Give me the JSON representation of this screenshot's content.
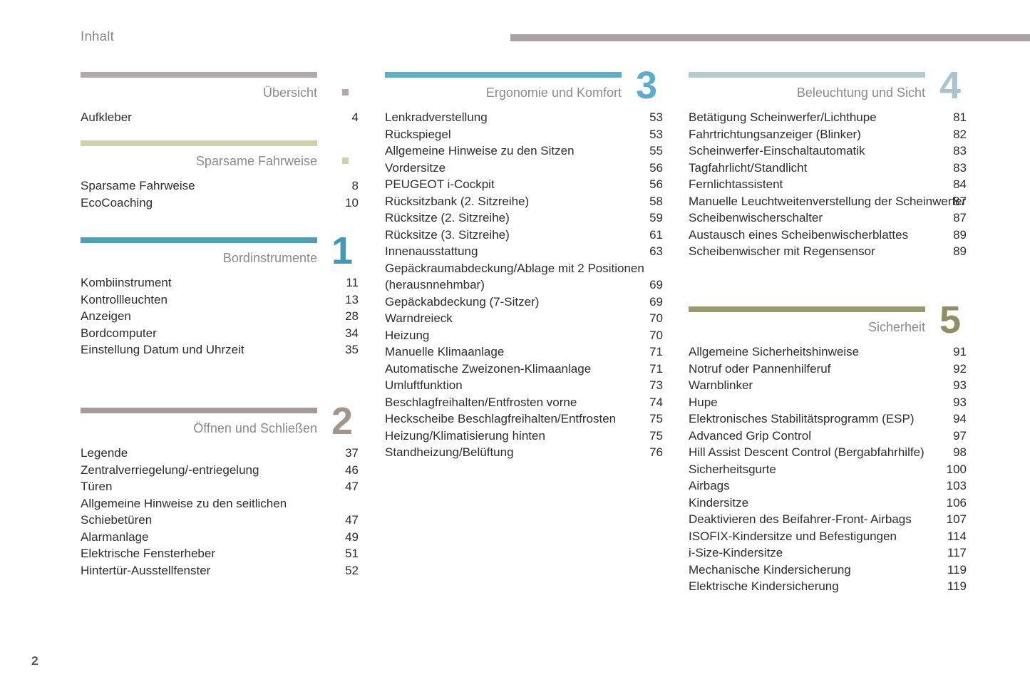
{
  "header": {
    "title": "Inhalt"
  },
  "footer": {
    "page_number": "2"
  },
  "colors": {
    "top_rule": "#aaa1a5",
    "section_title_text": "#8a8a8a",
    "item_text": "#2d2d2d"
  },
  "sections": [
    {
      "id": "uebersicht",
      "column": 1,
      "title": "Übersicht",
      "marker": "square",
      "bar_color": "#b3a9ad",
      "accent_color": "#b3a9ad",
      "items": [
        {
          "label": "Aufkleber",
          "page": "4"
        }
      ]
    },
    {
      "id": "sparsame-fahrweise",
      "column": 1,
      "title": "Sparsame Fahrweise",
      "marker": "square",
      "bar_color": "#cfd1ac",
      "accent_color": "#cfd1ac",
      "items": [
        {
          "label": "Sparsame Fahrweise",
          "page": "8"
        },
        {
          "label": "EcoCoaching",
          "page": "10"
        }
      ]
    },
    {
      "id": "bordinstrumente",
      "column": 1,
      "title": "Bordinstrumente",
      "marker": "number",
      "number": "1",
      "bar_color": "#4ba1bc",
      "accent_color": "#4398b3",
      "items": [
        {
          "label": "Kombiinstrument",
          "page": "11"
        },
        {
          "label": "Kontrollleuchten",
          "page": "13"
        },
        {
          "label": "Anzeigen",
          "page": "28"
        },
        {
          "label": "Bordcomputer",
          "page": "34"
        },
        {
          "label": "Einstellung Datum und Uhrzeit",
          "page": "35"
        }
      ]
    },
    {
      "id": "oeffnen-und-schliessen",
      "column": 1,
      "title": "Öffnen und Schließen",
      "marker": "number",
      "number": "2",
      "bar_color": "#a89d95",
      "accent_color": "#a1968e",
      "items": [
        {
          "label": "Legende",
          "page": "37"
        },
        {
          "label": "Zentralverriegelung/-entriegelung",
          "page": "46"
        },
        {
          "label": "Türen",
          "page": "47"
        },
        {
          "label": "Allgemeine Hinweise zu den seitlichen Schiebetüren",
          "page": "47"
        },
        {
          "label": "Alarmanlage",
          "page": "49"
        },
        {
          "label": "Elektrische Fensterheber",
          "page": "51"
        },
        {
          "label": "Hintertür-Ausstellfenster",
          "page": "52"
        }
      ]
    },
    {
      "id": "ergonomie-und-komfort",
      "column": 2,
      "title": "Ergonomie und Komfort",
      "marker": "number",
      "number": "3",
      "bar_color": "#5fb0c9",
      "accent_color": "#5cadcd",
      "items": [
        {
          "label": "Lenkradverstellung",
          "page": "53"
        },
        {
          "label": "Rückspiegel",
          "page": "53"
        },
        {
          "label": "Allgemeine Hinweise zu den Sitzen",
          "page": "55"
        },
        {
          "label": "Vordersitze",
          "page": "56"
        },
        {
          "label": "PEUGEOT i-Cockpit",
          "page": "56"
        },
        {
          "label": "Rücksitzbank (2. Sitzreihe)",
          "page": "58"
        },
        {
          "label": "Rücksitze (2. Sitzreihe)",
          "page": "59"
        },
        {
          "label": "Rücksitze (3. Sitzreihe)",
          "page": "61"
        },
        {
          "label": "Innenausstattung",
          "page": "63"
        },
        {
          "label": "Gepäckraumabdeckung/Ablage mit 2 Positionen (herausnnehmbar)",
          "page": "69"
        },
        {
          "label": "Gepäckabdeckung (7-Sitzer)",
          "page": "69"
        },
        {
          "label": "Warndreieck",
          "page": "70"
        },
        {
          "label": "Heizung",
          "page": "70"
        },
        {
          "label": "Manuelle Klimaanlage",
          "page": "71"
        },
        {
          "label": "Automatische Zweizonen-Klimaanlage",
          "page": "71"
        },
        {
          "label": "Umluftfunktion",
          "page": "73"
        },
        {
          "label": "Beschlagfreihalten/Entfrosten vorne",
          "page": "74"
        },
        {
          "label": "Heckscheibe Beschlagfreihalten/Entfrosten",
          "page": "75"
        },
        {
          "label": "Heizung/Klimatisierung hinten",
          "page": "75"
        },
        {
          "label": "Standheizung/Belüftung",
          "page": "76"
        }
      ]
    },
    {
      "id": "beleuchtung-und-sicht",
      "column": 3,
      "title": "Beleuchtung und Sicht",
      "marker": "number",
      "number": "4",
      "bar_color": "#b5c9ce",
      "accent_color": "#aac4cb",
      "items": [
        {
          "label": "Betätigung Scheinwerfer/Lichthupe",
          "page": "81"
        },
        {
          "label": "Fahrtrichtungsanzeiger (Blinker)",
          "page": "82"
        },
        {
          "label": "Scheinwerfer-Einschaltautomatik",
          "page": "83"
        },
        {
          "label": "Tagfahrlicht/Standlicht",
          "page": "83"
        },
        {
          "label": "Fernlichtassistent",
          "page": "84"
        },
        {
          "label": "Manuelle Leuchtweitenverstellung der Scheinwerfer",
          "page": "87"
        },
        {
          "label": "Scheibenwischerschalter",
          "page": "87"
        },
        {
          "label": "Austausch eines Scheibenwischerblattes",
          "page": "89"
        },
        {
          "label": "Scheibenwischer mit Regensensor",
          "page": "89"
        }
      ]
    },
    {
      "id": "sicherheit",
      "column": 3,
      "title": "Sicherheit",
      "marker": "number",
      "number": "5",
      "bar_color": "#9a9a70",
      "accent_color": "#8f8f63",
      "items": [
        {
          "label": "Allgemeine Sicherheitshinweise",
          "page": "91"
        },
        {
          "label": "Notruf oder Pannenhilferuf",
          "page": "92"
        },
        {
          "label": "Warnblinker",
          "page": "93"
        },
        {
          "label": "Hupe",
          "page": "93"
        },
        {
          "label": "Elektronisches Stabilitätsprogramm (ESP)",
          "page": "94"
        },
        {
          "label": "Advanced Grip Control",
          "page": "97"
        },
        {
          "label": "Hill Assist Descent Control (Bergabfahrhilfe)",
          "page": "98"
        },
        {
          "label": "Sicherheitsgurte",
          "page": "100"
        },
        {
          "label": "Airbags",
          "page": "103"
        },
        {
          "label": "Kindersitze",
          "page": "106"
        },
        {
          "label": "Deaktivieren des Beifahrer-Front- Airbags",
          "page": "107"
        },
        {
          "label": "ISOFIX-Kindersitze und Befestigungen",
          "page": "114"
        },
        {
          "label": "i-Size-Kindersitze",
          "page": "117"
        },
        {
          "label": "Mechanische Kindersicherung",
          "page": "119"
        },
        {
          "label": "Elektrische Kindersicherung",
          "page": "119"
        }
      ]
    }
  ]
}
